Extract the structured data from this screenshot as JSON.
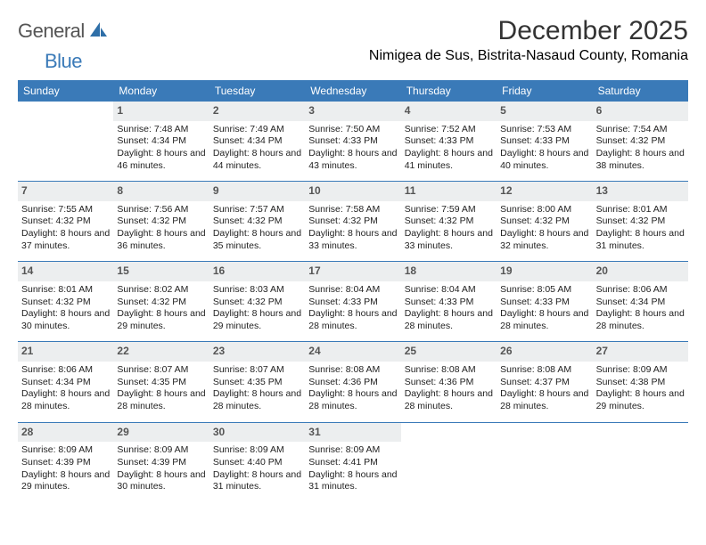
{
  "logo": {
    "general": "General",
    "blue": "Blue"
  },
  "title": "December 2025",
  "location": "Nimigea de Sus, Bistrita-Nasaud County, Romania",
  "colors": {
    "header_bg": "#3a7ab8",
    "date_bg": "#eceeef",
    "rule": "#3a7ab8"
  },
  "dayHeaders": [
    "Sunday",
    "Monday",
    "Tuesday",
    "Wednesday",
    "Thursday",
    "Friday",
    "Saturday"
  ],
  "weeks": [
    [
      {
        "date": "",
        "sunrise": "",
        "sunset": "",
        "daylight": ""
      },
      {
        "date": "1",
        "sunrise": "Sunrise: 7:48 AM",
        "sunset": "Sunset: 4:34 PM",
        "daylight": "Daylight: 8 hours and 46 minutes."
      },
      {
        "date": "2",
        "sunrise": "Sunrise: 7:49 AM",
        "sunset": "Sunset: 4:34 PM",
        "daylight": "Daylight: 8 hours and 44 minutes."
      },
      {
        "date": "3",
        "sunrise": "Sunrise: 7:50 AM",
        "sunset": "Sunset: 4:33 PM",
        "daylight": "Daylight: 8 hours and 43 minutes."
      },
      {
        "date": "4",
        "sunrise": "Sunrise: 7:52 AM",
        "sunset": "Sunset: 4:33 PM",
        "daylight": "Daylight: 8 hours and 41 minutes."
      },
      {
        "date": "5",
        "sunrise": "Sunrise: 7:53 AM",
        "sunset": "Sunset: 4:33 PM",
        "daylight": "Daylight: 8 hours and 40 minutes."
      },
      {
        "date": "6",
        "sunrise": "Sunrise: 7:54 AM",
        "sunset": "Sunset: 4:32 PM",
        "daylight": "Daylight: 8 hours and 38 minutes."
      }
    ],
    [
      {
        "date": "7",
        "sunrise": "Sunrise: 7:55 AM",
        "sunset": "Sunset: 4:32 PM",
        "daylight": "Daylight: 8 hours and 37 minutes."
      },
      {
        "date": "8",
        "sunrise": "Sunrise: 7:56 AM",
        "sunset": "Sunset: 4:32 PM",
        "daylight": "Daylight: 8 hours and 36 minutes."
      },
      {
        "date": "9",
        "sunrise": "Sunrise: 7:57 AM",
        "sunset": "Sunset: 4:32 PM",
        "daylight": "Daylight: 8 hours and 35 minutes."
      },
      {
        "date": "10",
        "sunrise": "Sunrise: 7:58 AM",
        "sunset": "Sunset: 4:32 PM",
        "daylight": "Daylight: 8 hours and 33 minutes."
      },
      {
        "date": "11",
        "sunrise": "Sunrise: 7:59 AM",
        "sunset": "Sunset: 4:32 PM",
        "daylight": "Daylight: 8 hours and 33 minutes."
      },
      {
        "date": "12",
        "sunrise": "Sunrise: 8:00 AM",
        "sunset": "Sunset: 4:32 PM",
        "daylight": "Daylight: 8 hours and 32 minutes."
      },
      {
        "date": "13",
        "sunrise": "Sunrise: 8:01 AM",
        "sunset": "Sunset: 4:32 PM",
        "daylight": "Daylight: 8 hours and 31 minutes."
      }
    ],
    [
      {
        "date": "14",
        "sunrise": "Sunrise: 8:01 AM",
        "sunset": "Sunset: 4:32 PM",
        "daylight": "Daylight: 8 hours and 30 minutes."
      },
      {
        "date": "15",
        "sunrise": "Sunrise: 8:02 AM",
        "sunset": "Sunset: 4:32 PM",
        "daylight": "Daylight: 8 hours and 29 minutes."
      },
      {
        "date": "16",
        "sunrise": "Sunrise: 8:03 AM",
        "sunset": "Sunset: 4:32 PM",
        "daylight": "Daylight: 8 hours and 29 minutes."
      },
      {
        "date": "17",
        "sunrise": "Sunrise: 8:04 AM",
        "sunset": "Sunset: 4:33 PM",
        "daylight": "Daylight: 8 hours and 28 minutes."
      },
      {
        "date": "18",
        "sunrise": "Sunrise: 8:04 AM",
        "sunset": "Sunset: 4:33 PM",
        "daylight": "Daylight: 8 hours and 28 minutes."
      },
      {
        "date": "19",
        "sunrise": "Sunrise: 8:05 AM",
        "sunset": "Sunset: 4:33 PM",
        "daylight": "Daylight: 8 hours and 28 minutes."
      },
      {
        "date": "20",
        "sunrise": "Sunrise: 8:06 AM",
        "sunset": "Sunset: 4:34 PM",
        "daylight": "Daylight: 8 hours and 28 minutes."
      }
    ],
    [
      {
        "date": "21",
        "sunrise": "Sunrise: 8:06 AM",
        "sunset": "Sunset: 4:34 PM",
        "daylight": "Daylight: 8 hours and 28 minutes."
      },
      {
        "date": "22",
        "sunrise": "Sunrise: 8:07 AM",
        "sunset": "Sunset: 4:35 PM",
        "daylight": "Daylight: 8 hours and 28 minutes."
      },
      {
        "date": "23",
        "sunrise": "Sunrise: 8:07 AM",
        "sunset": "Sunset: 4:35 PM",
        "daylight": "Daylight: 8 hours and 28 minutes."
      },
      {
        "date": "24",
        "sunrise": "Sunrise: 8:08 AM",
        "sunset": "Sunset: 4:36 PM",
        "daylight": "Daylight: 8 hours and 28 minutes."
      },
      {
        "date": "25",
        "sunrise": "Sunrise: 8:08 AM",
        "sunset": "Sunset: 4:36 PM",
        "daylight": "Daylight: 8 hours and 28 minutes."
      },
      {
        "date": "26",
        "sunrise": "Sunrise: 8:08 AM",
        "sunset": "Sunset: 4:37 PM",
        "daylight": "Daylight: 8 hours and 28 minutes."
      },
      {
        "date": "27",
        "sunrise": "Sunrise: 8:09 AM",
        "sunset": "Sunset: 4:38 PM",
        "daylight": "Daylight: 8 hours and 29 minutes."
      }
    ],
    [
      {
        "date": "28",
        "sunrise": "Sunrise: 8:09 AM",
        "sunset": "Sunset: 4:39 PM",
        "daylight": "Daylight: 8 hours and 29 minutes."
      },
      {
        "date": "29",
        "sunrise": "Sunrise: 8:09 AM",
        "sunset": "Sunset: 4:39 PM",
        "daylight": "Daylight: 8 hours and 30 minutes."
      },
      {
        "date": "30",
        "sunrise": "Sunrise: 8:09 AM",
        "sunset": "Sunset: 4:40 PM",
        "daylight": "Daylight: 8 hours and 31 minutes."
      },
      {
        "date": "31",
        "sunrise": "Sunrise: 8:09 AM",
        "sunset": "Sunset: 4:41 PM",
        "daylight": "Daylight: 8 hours and 31 minutes."
      },
      {
        "date": "",
        "sunrise": "",
        "sunset": "",
        "daylight": ""
      },
      {
        "date": "",
        "sunrise": "",
        "sunset": "",
        "daylight": ""
      },
      {
        "date": "",
        "sunrise": "",
        "sunset": "",
        "daylight": ""
      }
    ]
  ]
}
